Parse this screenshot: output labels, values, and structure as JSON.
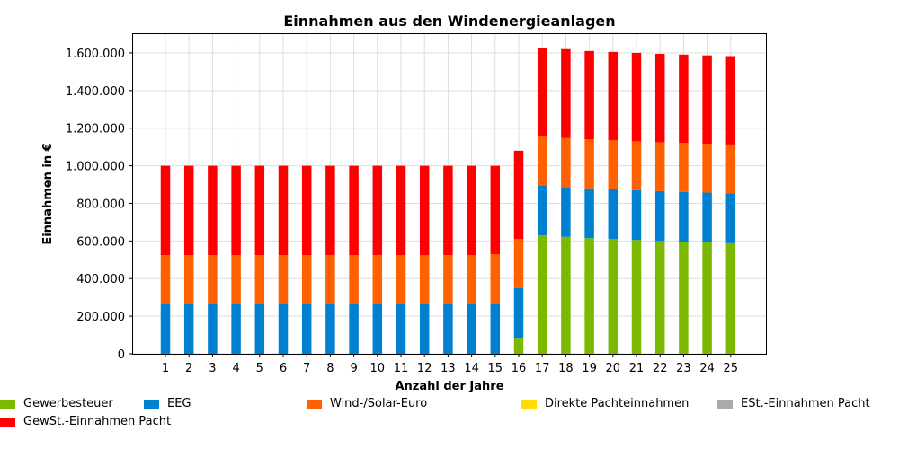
{
  "chart_data": {
    "type": "bar",
    "stacked": true,
    "title": "Einnahmen aus den Windenergieanlagen",
    "xlabel": "Anzahl der Jahre",
    "ylabel": "Einnahmen in €",
    "ylim": [
      0,
      1700000
    ],
    "yticks": [
      0,
      200000,
      400000,
      600000,
      800000,
      1000000,
      1200000,
      1400000,
      1600000
    ],
    "ytick_labels": [
      "0",
      "200.000",
      "400.000",
      "600.000",
      "800.000",
      "1.000.000",
      "1.200.000",
      "1.400.000",
      "1.600.000"
    ],
    "grid": true,
    "legend_position": "bottom",
    "categories": [
      "1",
      "2",
      "3",
      "4",
      "5",
      "6",
      "7",
      "8",
      "9",
      "10",
      "11",
      "12",
      "13",
      "14",
      "15",
      "16",
      "17",
      "18",
      "19",
      "20",
      "21",
      "22",
      "23",
      "24",
      "25"
    ],
    "series": [
      {
        "name": "Gewerbesteuer",
        "color": "#7cb800",
        "values": [
          0,
          0,
          0,
          0,
          0,
          0,
          0,
          0,
          0,
          0,
          0,
          0,
          0,
          0,
          0,
          85000,
          630000,
          622000,
          615000,
          610000,
          605000,
          600000,
          596000,
          592000,
          588000
        ]
      },
      {
        "name": "EEG",
        "color": "#0080d0",
        "values": [
          265000,
          265000,
          265000,
          265000,
          265000,
          265000,
          265000,
          265000,
          265000,
          265000,
          265000,
          265000,
          265000,
          265000,
          265000,
          265000,
          265000,
          265000,
          265000,
          265000,
          265000,
          265000,
          265000,
          265000,
          265000
        ]
      },
      {
        "name": "Wind-/Solar-Euro",
        "color": "#ff6000",
        "values": [
          260000,
          260000,
          260000,
          260000,
          260000,
          260000,
          260000,
          260000,
          260000,
          260000,
          260000,
          260000,
          260000,
          260000,
          265000,
          260000,
          260000,
          260000,
          260000,
          260000,
          260000,
          260000,
          260000,
          260000,
          260000
        ]
      },
      {
        "name": "Direkte Pachteinnahmen",
        "color": "#ffdd00",
        "values": [
          0,
          0,
          0,
          0,
          0,
          0,
          0,
          0,
          0,
          0,
          0,
          0,
          0,
          0,
          0,
          0,
          0,
          0,
          0,
          0,
          0,
          0,
          0,
          0,
          0
        ]
      },
      {
        "name": "ESt.-Einnahmen Pacht",
        "color": "#aaaaaa",
        "values": [
          0,
          0,
          0,
          0,
          0,
          0,
          0,
          0,
          0,
          0,
          0,
          0,
          0,
          0,
          0,
          0,
          0,
          0,
          0,
          0,
          0,
          0,
          0,
          0,
          0
        ]
      },
      {
        "name": "GewSt.-Einnahmen Pacht",
        "color": "#ff0000",
        "values": [
          475000,
          475000,
          475000,
          475000,
          475000,
          475000,
          475000,
          475000,
          475000,
          475000,
          475000,
          475000,
          475000,
          475000,
          470000,
          470000,
          470000,
          473000,
          470000,
          470000,
          470000,
          470000,
          470000,
          470000,
          470000
        ]
      }
    ]
  }
}
